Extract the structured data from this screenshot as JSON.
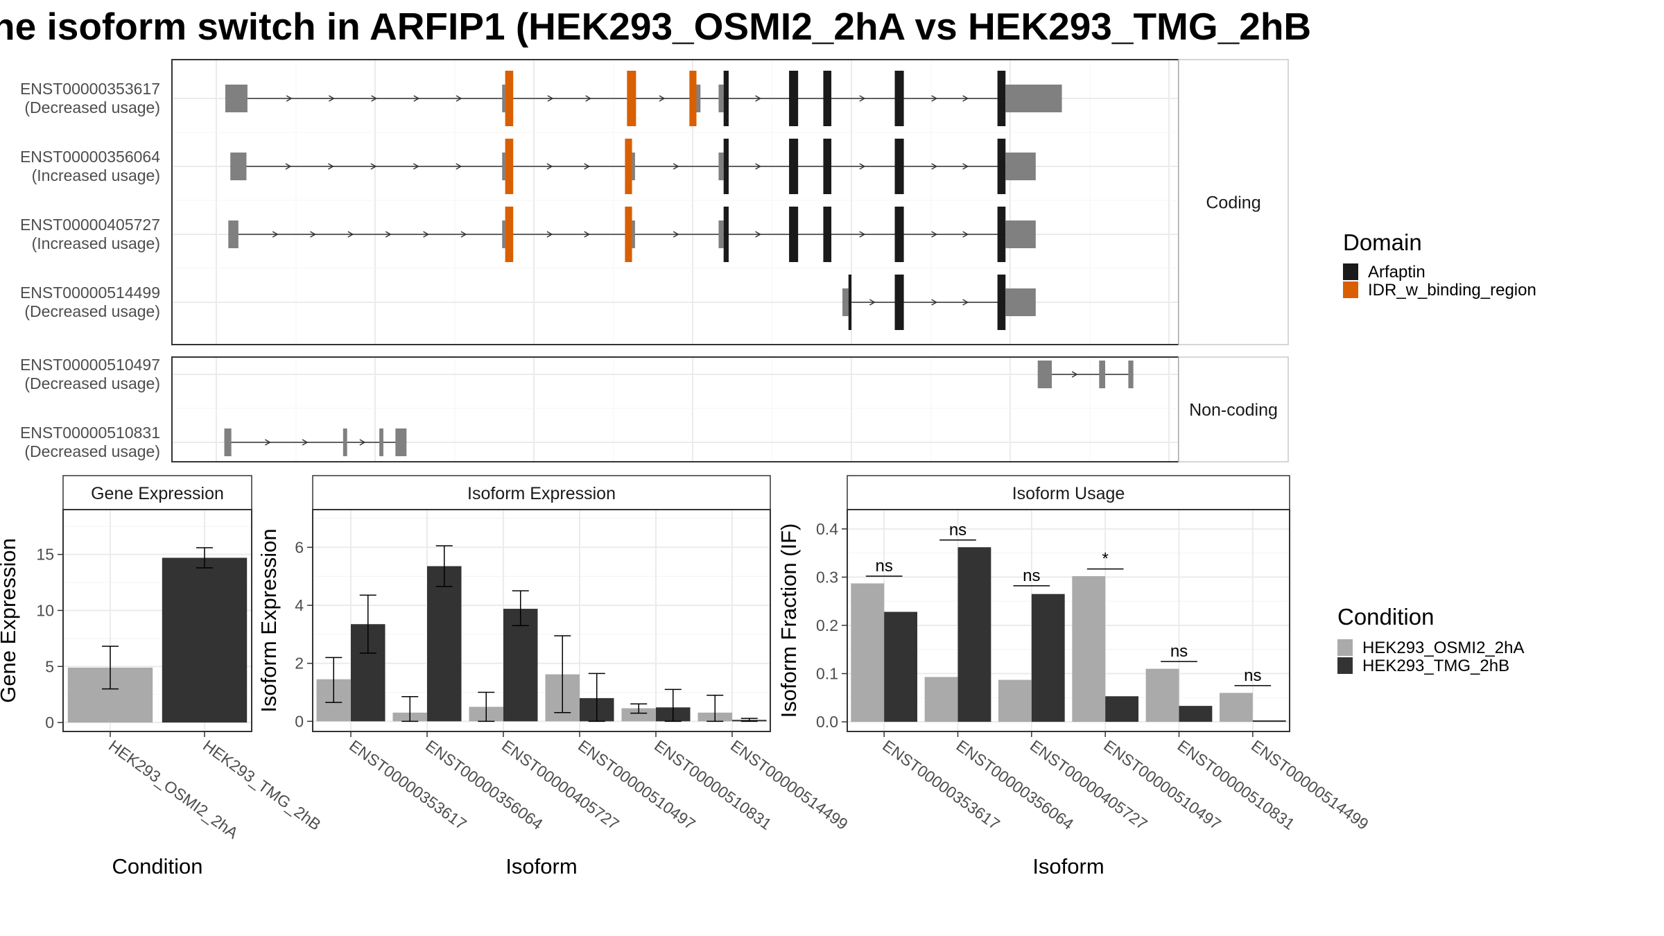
{
  "chart_data": [
    {
      "type": "transcript-structure",
      "title": "he isoform switch in ARFIP1 (HEK293_OSMI2_2hA vs HEK293_TMG_2hB",
      "panels": [
        {
          "name": "Coding",
          "tracks": [
            {
              "id": "ENST00000353617",
              "usage": "(Decreased usage)",
              "exons": [
                {
                  "start": 0.053,
                  "end": 0.075,
                  "type": "utr"
                },
                {
                  "start": 0.328,
                  "end": 0.331,
                  "type": "utr"
                },
                {
                  "start": 0.331,
                  "end": 0.339,
                  "type": "domain",
                  "domain": "IDR_w_binding_region"
                },
                {
                  "start": 0.452,
                  "end": 0.461,
                  "type": "domain",
                  "domain": "IDR_w_binding_region"
                },
                {
                  "start": 0.514,
                  "end": 0.521,
                  "type": "domain",
                  "domain": "IDR_w_binding_region"
                },
                {
                  "start": 0.521,
                  "end": 0.525,
                  "type": "utr"
                },
                {
                  "start": 0.543,
                  "end": 0.548,
                  "type": "utr"
                },
                {
                  "start": 0.548,
                  "end": 0.553,
                  "type": "domain",
                  "domain": "Arfaptin"
                },
                {
                  "start": 0.613,
                  "end": 0.622,
                  "type": "domain",
                  "domain": "Arfaptin"
                },
                {
                  "start": 0.647,
                  "end": 0.655,
                  "type": "domain",
                  "domain": "Arfaptin"
                },
                {
                  "start": 0.718,
                  "end": 0.727,
                  "type": "domain",
                  "domain": "Arfaptin"
                },
                {
                  "start": 0.82,
                  "end": 0.828,
                  "type": "domain",
                  "domain": "Arfaptin"
                },
                {
                  "start": 0.828,
                  "end": 0.884,
                  "type": "utr"
                }
              ]
            },
            {
              "id": "ENST00000356064",
              "usage": "(Increased usage)",
              "exons": [
                {
                  "start": 0.058,
                  "end": 0.074,
                  "type": "utr"
                },
                {
                  "start": 0.328,
                  "end": 0.331,
                  "type": "utr"
                },
                {
                  "start": 0.331,
                  "end": 0.339,
                  "type": "domain",
                  "domain": "IDR_w_binding_region"
                },
                {
                  "start": 0.45,
                  "end": 0.457,
                  "type": "domain",
                  "domain": "IDR_w_binding_region"
                },
                {
                  "start": 0.457,
                  "end": 0.46,
                  "type": "utr"
                },
                {
                  "start": 0.543,
                  "end": 0.548,
                  "type": "utr"
                },
                {
                  "start": 0.548,
                  "end": 0.553,
                  "type": "domain",
                  "domain": "Arfaptin"
                },
                {
                  "start": 0.613,
                  "end": 0.622,
                  "type": "domain",
                  "domain": "Arfaptin"
                },
                {
                  "start": 0.647,
                  "end": 0.655,
                  "type": "domain",
                  "domain": "Arfaptin"
                },
                {
                  "start": 0.718,
                  "end": 0.727,
                  "type": "domain",
                  "domain": "Arfaptin"
                },
                {
                  "start": 0.82,
                  "end": 0.828,
                  "type": "domain",
                  "domain": "Arfaptin"
                },
                {
                  "start": 0.828,
                  "end": 0.858,
                  "type": "utr"
                }
              ]
            },
            {
              "id": "ENST00000405727",
              "usage": "(Increased usage)",
              "exons": [
                {
                  "start": 0.056,
                  "end": 0.066,
                  "type": "utr"
                },
                {
                  "start": 0.328,
                  "end": 0.331,
                  "type": "utr"
                },
                {
                  "start": 0.331,
                  "end": 0.339,
                  "type": "domain",
                  "domain": "IDR_w_binding_region"
                },
                {
                  "start": 0.45,
                  "end": 0.457,
                  "type": "domain",
                  "domain": "IDR_w_binding_region"
                },
                {
                  "start": 0.457,
                  "end": 0.46,
                  "type": "utr"
                },
                {
                  "start": 0.543,
                  "end": 0.548,
                  "type": "utr"
                },
                {
                  "start": 0.548,
                  "end": 0.553,
                  "type": "domain",
                  "domain": "Arfaptin"
                },
                {
                  "start": 0.613,
                  "end": 0.622,
                  "type": "domain",
                  "domain": "Arfaptin"
                },
                {
                  "start": 0.647,
                  "end": 0.655,
                  "type": "domain",
                  "domain": "Arfaptin"
                },
                {
                  "start": 0.718,
                  "end": 0.727,
                  "type": "domain",
                  "domain": "Arfaptin"
                },
                {
                  "start": 0.82,
                  "end": 0.828,
                  "type": "domain",
                  "domain": "Arfaptin"
                },
                {
                  "start": 0.828,
                  "end": 0.858,
                  "type": "utr"
                }
              ]
            },
            {
              "id": "ENST00000514499",
              "usage": "(Decreased usage)",
              "exons": [
                {
                  "start": 0.666,
                  "end": 0.672,
                  "type": "utr"
                },
                {
                  "start": 0.672,
                  "end": 0.675,
                  "type": "domain",
                  "domain": "Arfaptin"
                },
                {
                  "start": 0.718,
                  "end": 0.727,
                  "type": "domain",
                  "domain": "Arfaptin"
                },
                {
                  "start": 0.82,
                  "end": 0.828,
                  "type": "domain",
                  "domain": "Arfaptin"
                },
                {
                  "start": 0.828,
                  "end": 0.858,
                  "type": "utr"
                }
              ]
            }
          ]
        },
        {
          "name": "Non-coding",
          "tracks": [
            {
              "id": "ENST00000510497",
              "usage": "(Decreased usage)",
              "exons": [
                {
                  "start": 0.86,
                  "end": 0.874,
                  "type": "noncoding"
                },
                {
                  "start": 0.921,
                  "end": 0.927,
                  "type": "noncoding"
                },
                {
                  "start": 0.95,
                  "end": 0.955,
                  "type": "noncoding"
                }
              ]
            },
            {
              "id": "ENST00000510831",
              "usage": "(Decreased usage)",
              "exons": [
                {
                  "start": 0.052,
                  "end": 0.059,
                  "type": "noncoding"
                },
                {
                  "start": 0.17,
                  "end": 0.174,
                  "type": "noncoding"
                },
                {
                  "start": 0.206,
                  "end": 0.21,
                  "type": "noncoding"
                },
                {
                  "start": 0.222,
                  "end": 0.233,
                  "type": "noncoding"
                }
              ]
            }
          ]
        }
      ],
      "legend": {
        "title": "Domain",
        "items": [
          {
            "label": "Arfaptin",
            "color": "#1a1a1a"
          },
          {
            "label": "IDR_w_binding_region",
            "color": "#d95f02"
          }
        ]
      },
      "colors": {
        "utr": "#808080",
        "noncoding": "#808080",
        "intron": "#333333"
      }
    },
    {
      "type": "bar",
      "strip": "Gene Expression",
      "xlabel": "Condition",
      "ylabel": "Gene Expression",
      "ylim": [
        -0.8,
        19
      ],
      "yticks": [
        0,
        5,
        10,
        15
      ],
      "categories": [
        "HEK293_OSMI2_2hA",
        "HEK293_TMG_2hB"
      ],
      "values": [
        4.9,
        14.7
      ],
      "errors": [
        [
          3.0,
          6.8
        ],
        [
          13.8,
          15.6
        ]
      ],
      "colors": [
        "#aaaaaa",
        "#333333"
      ]
    },
    {
      "type": "bar",
      "strip": "Isoform Expression",
      "xlabel": "Isoform",
      "ylabel": "Isoform Expression",
      "ylim": [
        -0.35,
        7.3
      ],
      "yticks": [
        0,
        2,
        4,
        6
      ],
      "categories": [
        "ENST00000353617",
        "ENST00000356064",
        "ENST00000405727",
        "ENST00000510497",
        "ENST00000510831",
        "ENST00000514499"
      ],
      "series": [
        {
          "name": "HEK293_OSMI2_2hA",
          "color": "#aaaaaa",
          "values": [
            1.45,
            0.3,
            0.5,
            1.62,
            0.45,
            0.3
          ],
          "errors": [
            [
              0.65,
              2.2
            ],
            [
              0.0,
              0.85
            ],
            [
              0.0,
              1.0
            ],
            [
              0.3,
              2.95
            ],
            [
              0.28,
              0.6
            ],
            [
              0.0,
              0.9
            ]
          ]
        },
        {
          "name": "HEK293_TMG_2hB",
          "color": "#333333",
          "values": [
            3.35,
            5.35,
            3.88,
            0.8,
            0.48,
            0.05
          ],
          "errors": [
            [
              2.35,
              4.35
            ],
            [
              4.65,
              6.05
            ],
            [
              3.3,
              4.5
            ],
            [
              0.0,
              1.65
            ],
            [
              0.0,
              1.1
            ],
            [
              0.0,
              0.1
            ]
          ]
        }
      ]
    },
    {
      "type": "bar",
      "strip": "Isoform Usage",
      "xlabel": "Isoform",
      "ylabel": "Isoform Fraction (IF)",
      "ylim": [
        -0.02,
        0.44
      ],
      "yticks": [
        0.0,
        0.1,
        0.2,
        0.3,
        0.4
      ],
      "yticklabels": [
        "0.0",
        "0.1",
        "0.2",
        "0.3",
        "0.4"
      ],
      "categories": [
        "ENST00000353617",
        "ENST00000356064",
        "ENST00000405727",
        "ENST00000510497",
        "ENST00000510831",
        "ENST00000514499"
      ],
      "series": [
        {
          "name": "HEK293_OSMI2_2hA",
          "color": "#aaaaaa",
          "values": [
            0.287,
            0.093,
            0.087,
            0.302,
            0.11,
            0.06
          ]
        },
        {
          "name": "HEK293_TMG_2hB",
          "color": "#333333",
          "values": [
            0.228,
            0.362,
            0.265,
            0.053,
            0.033,
            0.003
          ]
        }
      ],
      "significance": [
        "ns",
        "ns",
        "ns",
        "*",
        "ns",
        "ns"
      ],
      "significance_y": [
        0.302,
        0.377,
        0.282,
        0.317,
        0.125,
        0.075
      ]
    }
  ],
  "legends": {
    "condition": {
      "title": "Condition",
      "items": [
        {
          "label": "HEK293_OSMI2_2hA",
          "color": "#aaaaaa"
        },
        {
          "label": "HEK293_TMG_2hB",
          "color": "#333333"
        }
      ]
    }
  }
}
